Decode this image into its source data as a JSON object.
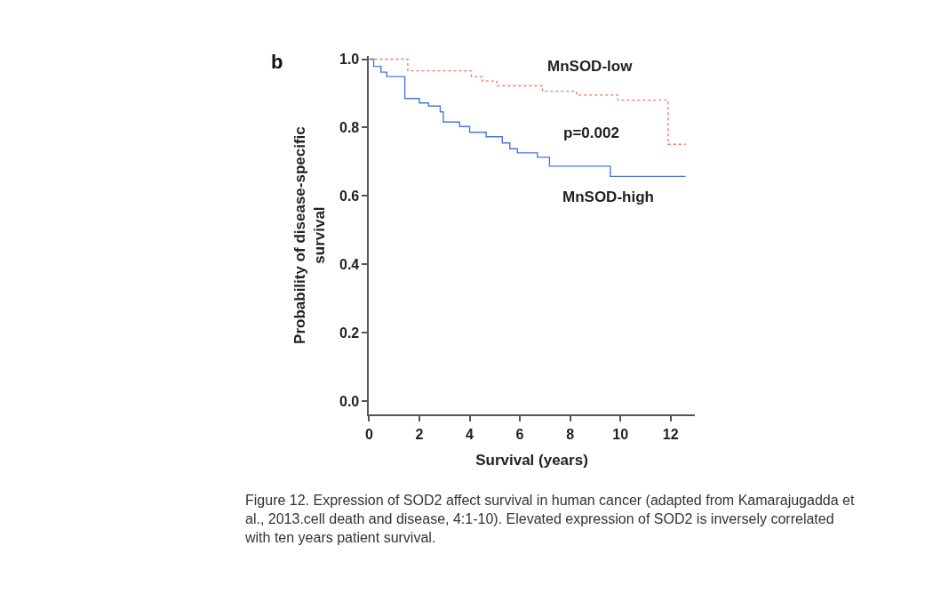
{
  "chart_data": {
    "type": "step",
    "xlabel": "Survival (years)",
    "ylabel": "Probability of disease-specific\nsurvival",
    "series": [
      {
        "name": "MnSOD-low",
        "color": "#f4765e",
        "line_style": "dotted",
        "x": [
          0,
          1.54,
          4.07,
          4.5,
          5.08,
          6.9,
          8.26,
          9.9,
          11.9,
          12.6
        ],
        "values": [
          1.0,
          0.966,
          0.949,
          0.936,
          0.922,
          0.906,
          0.895,
          0.88,
          0.751,
          0.751
        ]
      },
      {
        "name": "MnSOD-high",
        "color": "#4a78e0",
        "line_style": "solid",
        "x": [
          0,
          0.18,
          0.47,
          0.7,
          1.42,
          2.0,
          2.36,
          2.83,
          2.95,
          3.6,
          4.0,
          4.66,
          5.3,
          5.6,
          5.9,
          6.7,
          7.18,
          9.6,
          12.6
        ],
        "values": [
          1.0,
          0.979,
          0.962,
          0.949,
          0.885,
          0.872,
          0.863,
          0.846,
          0.816,
          0.803,
          0.786,
          0.773,
          0.755,
          0.738,
          0.726,
          0.713,
          0.687,
          0.657,
          0.657
        ]
      }
    ],
    "xlim": [
      0,
      12.95
    ],
    "ylim": [
      -0.04,
      1.01
    ],
    "xticks": [
      0,
      2,
      4,
      6,
      8,
      10,
      12
    ],
    "yticks": [
      {
        "value": 0,
        "label": "0.0"
      },
      {
        "value": 0.2,
        "label": "0.2"
      },
      {
        "value": 0.4,
        "label": "0.4"
      },
      {
        "value": 0.6,
        "label": "0.6"
      },
      {
        "value": 0.8,
        "label": "0.8"
      },
      {
        "value": 1,
        "label": "1.0"
      }
    ],
    "legend": false,
    "annotations": [
      "b",
      "p=0.002",
      "Figure 12. Expression of SOD2 affect survival in human cancer (adapted from Kamarajugadda et al., 2013.cell death and disease, 4:1-10). Elevated expression of SOD2 is inversely correlated with ten years patient survival."
    ]
  }
}
